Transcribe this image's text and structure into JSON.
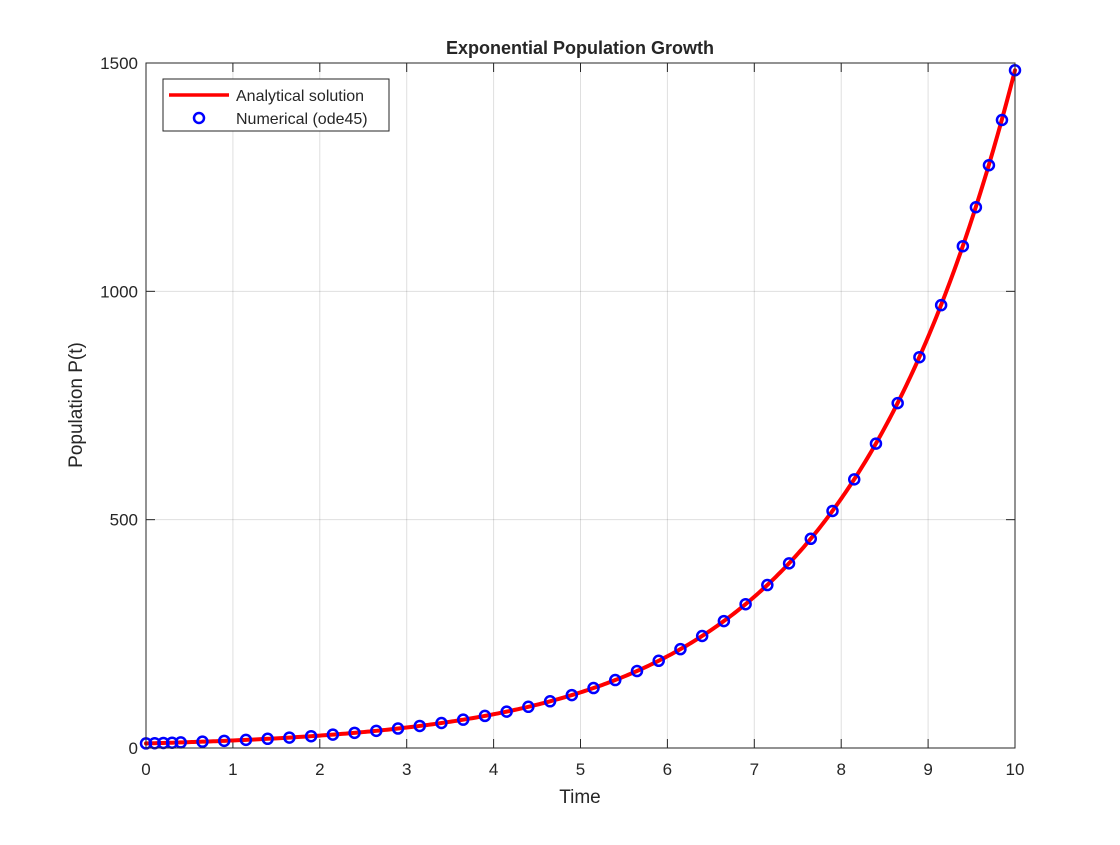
{
  "chart_data": {
    "type": "line",
    "title": "Exponential Population Growth",
    "xlabel": "Time",
    "ylabel": "Population P(t)",
    "xlim": [
      0,
      10
    ],
    "ylim": [
      0,
      1500
    ],
    "xticks": [
      0,
      1,
      2,
      3,
      4,
      5,
      6,
      7,
      8,
      9,
      10
    ],
    "yticks": [
      0,
      500,
      1000,
      1500
    ],
    "grid": true,
    "legend_position": "top-left",
    "model": {
      "P0": 10,
      "r": 0.5
    },
    "series": [
      {
        "name": "Analytical solution",
        "style": "line",
        "color": "#ff0000",
        "x": [
          0,
          0.25,
          0.5,
          0.75,
          1,
          1.25,
          1.5,
          1.75,
          2,
          2.25,
          2.5,
          2.75,
          3,
          3.25,
          3.5,
          3.75,
          4,
          4.25,
          4.5,
          4.75,
          5,
          5.25,
          5.5,
          5.75,
          6,
          6.25,
          6.5,
          6.75,
          7,
          7.25,
          7.5,
          7.75,
          8,
          8.25,
          8.5,
          8.75,
          9,
          9.25,
          9.5,
          9.75,
          10
        ],
        "y": [
          10,
          11.33,
          12.84,
          14.55,
          16.49,
          18.68,
          21.17,
          23.99,
          27.18,
          30.8,
          34.9,
          39.55,
          44.82,
          50.78,
          57.55,
          65.21,
          73.89,
          83.73,
          94.88,
          107.51,
          121.82,
          138.04,
          156.43,
          177.25,
          200.86,
          227.6,
          257.9,
          292.25,
          331.15,
          375.25,
          425.21,
          481.83,
          545.98,
          618.69,
          701.07,
          794.41,
          900.17,
          1020.03,
          1155.84,
          1309.74,
          1484.13
        ]
      },
      {
        "name": "Numerical (ode45)",
        "style": "markers",
        "marker": "circle",
        "color": "#0000ff",
        "x": [
          0,
          0.1,
          0.2,
          0.3,
          0.4,
          0.65,
          0.9,
          1.15,
          1.4,
          1.65,
          1.9,
          2.15,
          2.4,
          2.65,
          2.9,
          3.15,
          3.4,
          3.65,
          3.9,
          4.15,
          4.4,
          4.65,
          4.9,
          5.15,
          5.4,
          5.65,
          5.9,
          6.15,
          6.4,
          6.65,
          6.9,
          7.15,
          7.4,
          7.65,
          7.9,
          8.15,
          8.4,
          8.65,
          8.9,
          9.15,
          9.4,
          9.55,
          9.7,
          9.85,
          10
        ],
        "y": [
          10,
          10.51,
          11.05,
          11.62,
          12.21,
          13.84,
          15.68,
          17.77,
          20.14,
          22.83,
          25.86,
          29.31,
          33.2,
          37.62,
          42.63,
          48.31,
          54.74,
          62.03,
          70.29,
          79.64,
          90.25,
          102.26,
          115.87,
          131.29,
          148.77,
          168.57,
          191.02,
          216.44,
          245.26,
          277.91,
          314.9,
          356.82,
          404.32,
          458.14,
          519.12,
          588.23,
          666.53,
          755.24,
          855.78,
          969.7,
          1098.8,
          1184.1,
          1276.1,
          1375.2,
          1484.13
        ]
      }
    ]
  }
}
